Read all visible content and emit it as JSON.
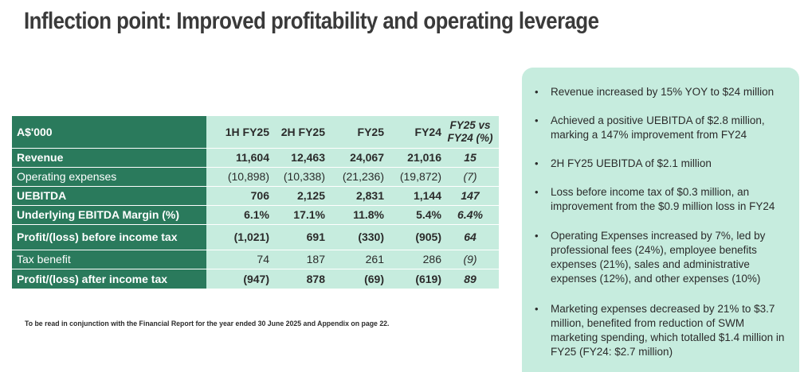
{
  "title": "Inflection point: Improved profitability and operating leverage",
  "table": {
    "columns": [
      "A$'000",
      "1H FY25",
      "2H FY25",
      "FY25",
      "FY24"
    ],
    "rows": [
      {
        "label": "Revenue",
        "values": [
          "11,604",
          "12,463",
          "24,067",
          "21,016"
        ]
      },
      {
        "label": "Operating expenses",
        "values": [
          "(10,898)",
          "(10,338)",
          "(21,236)",
          "(19,872)"
        ]
      },
      {
        "label": "UEBITDA",
        "values": [
          "706",
          "2,125",
          "2,831",
          "1,144"
        ]
      },
      {
        "label": "Underlying EBITDA Margin (%)",
        "values": [
          "6.1%",
          "17.1%",
          "11.8%",
          "5.4%"
        ]
      },
      {
        "label": "Profit/(loss) before income tax",
        "values": [
          "(1,021)",
          "691",
          "(330)",
          "(905)"
        ]
      },
      {
        "label": "Tax benefit",
        "values": [
          "74",
          "187",
          "261",
          "286"
        ]
      },
      {
        "label": "Profit/(loss) after income tax",
        "values": [
          "(947)",
          "878",
          "(69)",
          "(619)"
        ]
      }
    ]
  },
  "comparison": {
    "header_line1": "FY25 vs",
    "header_line2": "FY24 (%)",
    "values": [
      "15",
      "(7)",
      "147",
      "6.4%",
      "64",
      "(9)",
      "89"
    ]
  },
  "footnote": "To be read in conjunction with the Financial Report for the year ended 30 June 2025 and Appendix on page 22.",
  "highlights": [
    "Revenue increased by 15% YOY to $24 million",
    "Achieved a positive UEBITDA of $2.8 million, marking a 147% improvement from FY24",
    "2H FY25 UEBITDA of $2.1 million",
    "Loss before income tax of $0.3 million, an improvement from the $0.9 million loss in FY24",
    "Operating Expenses increased by 7%, led by professional fees (24%), employee benefits expenses (21%), sales and administrative expenses (12%), and other expenses (10%)",
    "Marketing expenses decreased by 21% to $3.7 million, benefited from reduction of SWM marketing spending, which totalled $1.4 million in FY25 (FY24: $2.7 million)"
  ],
  "colors": {
    "header_green": "#2a7a5c",
    "cell_mint": "#c6ecde",
    "panel_mint": "#c6ecde"
  }
}
